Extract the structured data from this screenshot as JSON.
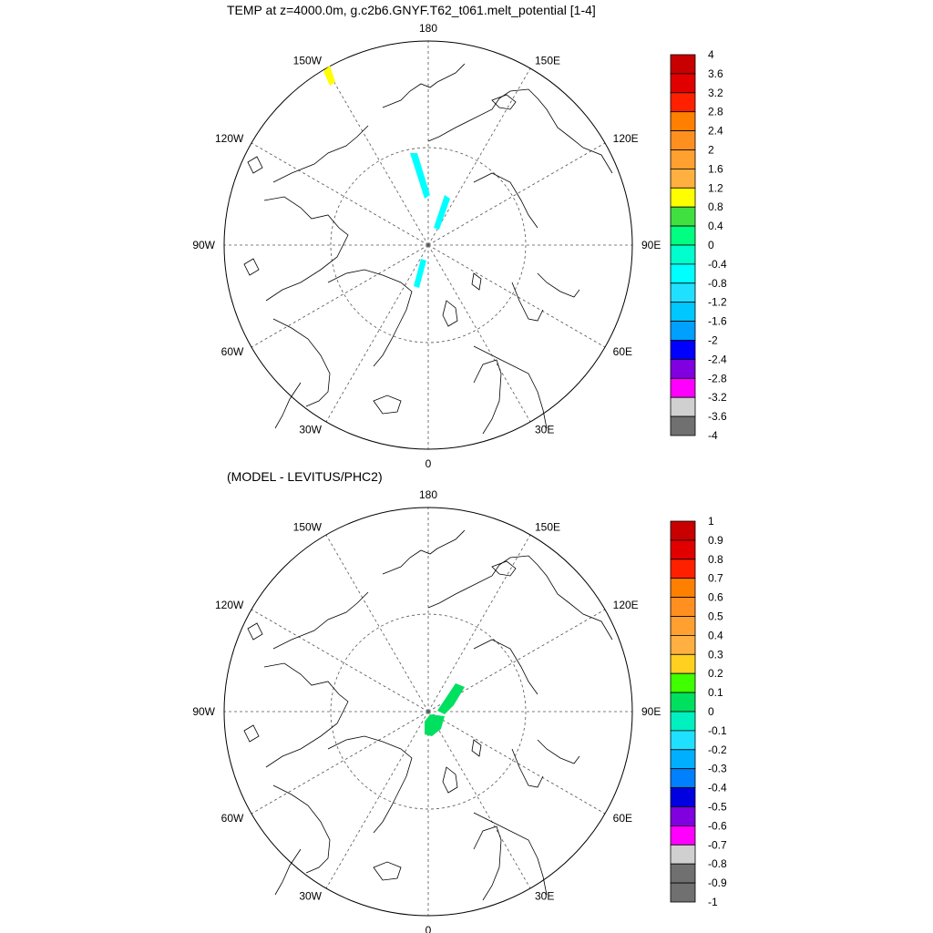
{
  "panels": [
    {
      "title": "TEMP at z=4000.0m, g.c2b6.GNYF.T62_t061.melt_potential [1-4]",
      "colorbar": {
        "labels": [
          "4",
          "3.6",
          "3.2",
          "2.8",
          "2.4",
          "2",
          "1.6",
          "1.2",
          "0.8",
          "0.4",
          "0",
          "-0.4",
          "-0.8",
          "-1.2",
          "-1.6",
          "-2",
          "-2.4",
          "-2.8",
          "-3.2",
          "-3.6",
          "-4"
        ],
        "colors": [
          "#c80000",
          "#e00000",
          "#ff2000",
          "#ff8000",
          "#ff9020",
          "#ffa030",
          "#ffb040",
          "#ffff00",
          "#40e040",
          "#00ff80",
          "#00ffcc",
          "#00ffff",
          "#20e0ff",
          "#00c8ff",
          "#00a0ff",
          "#0000ff",
          "#8000e0",
          "#ff00ff",
          "#d0d0d0",
          "#707070"
        ]
      },
      "features": [
        {
          "name": "cyan-streak",
          "color": "#00ffff"
        },
        {
          "name": "yellow-patch",
          "color": "#ffff00"
        }
      ]
    },
    {
      "title": "(MODEL - LEVITUS/PHC2)",
      "colorbar": {
        "labels": [
          "1",
          "0.9",
          "0.8",
          "0.7",
          "0.6",
          "0.5",
          "0.4",
          "0.3",
          "0.2",
          "0.1",
          "0",
          "-0.1",
          "-0.2",
          "-0.3",
          "-0.4",
          "-0.5",
          "-0.6",
          "-0.7",
          "-0.8",
          "-0.9",
          "-1"
        ],
        "colors": [
          "#c80000",
          "#e00000",
          "#ff2000",
          "#ff8000",
          "#ff9020",
          "#ffa030",
          "#ffb040",
          "#ffd020",
          "#40ff00",
          "#00e060",
          "#00f0c0",
          "#20e0ff",
          "#00b0ff",
          "#0080ff",
          "#0000e0",
          "#8000e0",
          "#ff00ff",
          "#d0d0d0",
          "#707070",
          "#707070"
        ]
      },
      "features": [
        {
          "name": "green-streak",
          "color": "#00e060"
        }
      ]
    }
  ],
  "map": {
    "longitude_labels": [
      "180",
      "150E",
      "120E",
      "90E",
      "60E",
      "30E",
      "0",
      "30W",
      "60W",
      "90W",
      "120W",
      "150W"
    ]
  }
}
